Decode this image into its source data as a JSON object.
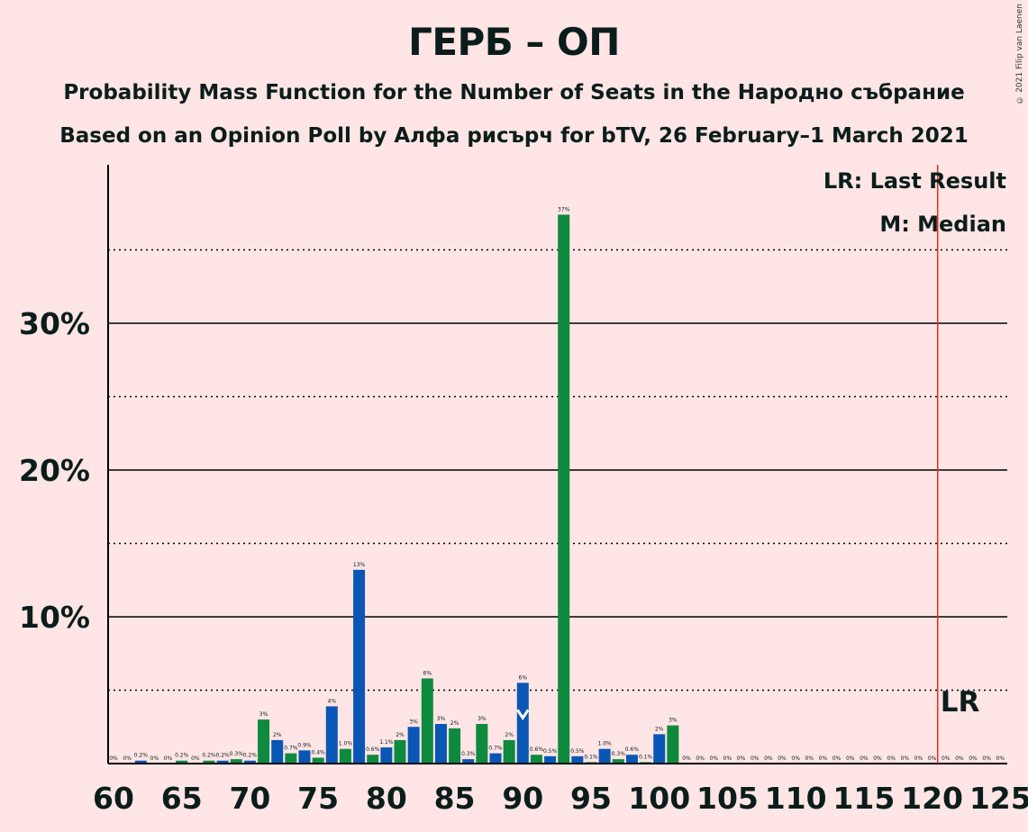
{
  "header": {
    "title": "ГЕРБ – ОП",
    "subtitle1": "Probability Mass Function for the Number of Seats in the Народно събрание",
    "subtitle2": "Based on an Opinion Poll by Алфа рисърч for bTV, 26 February–1 March 2021",
    "copyright": "© 2021 Filip van Laenen"
  },
  "chart_data": {
    "type": "bar",
    "xlabel": "",
    "ylabel": "",
    "xlim": [
      60,
      125
    ],
    "ylim": [
      0,
      40
    ],
    "y_ticks": [
      {
        "value": 10,
        "label": "10%"
      },
      {
        "value": 20,
        "label": "20%"
      },
      {
        "value": 30,
        "label": "30%"
      }
    ],
    "y_minor_gridlines": [
      5,
      15,
      25,
      35
    ],
    "x_ticks": [
      60,
      65,
      70,
      75,
      80,
      85,
      90,
      95,
      100,
      105,
      110,
      115,
      120,
      125
    ],
    "seats": [
      60,
      61,
      62,
      63,
      64,
      65,
      66,
      67,
      68,
      69,
      70,
      71,
      72,
      73,
      74,
      75,
      76,
      77,
      78,
      79,
      80,
      81,
      82,
      83,
      84,
      85,
      86,
      87,
      88,
      89,
      90,
      91,
      92,
      93,
      94,
      95,
      96,
      97,
      98,
      99,
      100,
      101,
      102,
      103,
      104,
      105,
      106,
      107,
      108,
      109,
      110,
      111,
      112,
      113,
      114,
      115,
      116,
      117,
      118,
      119,
      120,
      121,
      122,
      123,
      124,
      125
    ],
    "values": [
      0,
      0,
      0.2,
      0,
      0,
      0.2,
      0,
      0.2,
      0.2,
      0.3,
      0.2,
      3,
      1.6,
      0.7,
      0.9,
      0.4,
      3.9,
      1.0,
      13.2,
      0.6,
      1.1,
      1.6,
      2.5,
      5.8,
      2.7,
      2.4,
      0.3,
      2.7,
      0.7,
      1.6,
      5.5,
      0.6,
      0.5,
      37.4,
      0.5,
      0.1,
      1.0,
      0.3,
      0.6,
      0.1,
      2.0,
      2.6,
      0,
      0,
      0,
      0,
      0,
      0,
      0,
      0,
      0,
      0,
      0,
      0,
      0,
      0,
      0,
      0,
      0,
      0,
      0,
      0,
      0,
      0,
      0,
      0
    ],
    "labels": [
      "0%",
      "0%",
      "0.2%",
      "0%",
      "0%",
      "0.2%",
      "0%",
      "0.2%",
      "0.2%",
      "0.3%",
      "0.2%",
      "3%",
      "2%",
      "0.7%",
      "0.9%",
      "0.4%",
      "4%",
      "1.0%",
      "13%",
      "0.6%",
      "1.1%",
      "2%",
      "3%",
      "6%",
      "3%",
      "2%",
      "0.3%",
      "3%",
      "0.7%",
      "2%",
      "6%",
      "0.6%",
      "0.5%",
      "37%",
      "0.5%",
      "0.1%",
      "1.0%",
      "0.3%",
      "0.6%",
      "0.1%",
      "2%",
      "3%",
      "0%",
      "0%",
      "0%",
      "0%",
      "0%",
      "0%",
      "0%",
      "0%",
      "0%",
      "0%",
      "0%",
      "0%",
      "0%",
      "0%",
      "0%",
      "0%",
      "0%",
      "0%",
      "0%",
      "0%",
      "0%",
      "0%",
      "0%",
      "0%"
    ],
    "colors": {
      "blue": "#0A56B5",
      "green": "#0E8A3E",
      "last_result_line": "#E03020",
      "text": "#0B1D1A"
    },
    "last_result_seat": 121,
    "median_seat": 90,
    "legend": {
      "lr": "LR: Last Result",
      "m": "M: Median",
      "position": "top-right"
    },
    "lr_label": "LR"
  }
}
